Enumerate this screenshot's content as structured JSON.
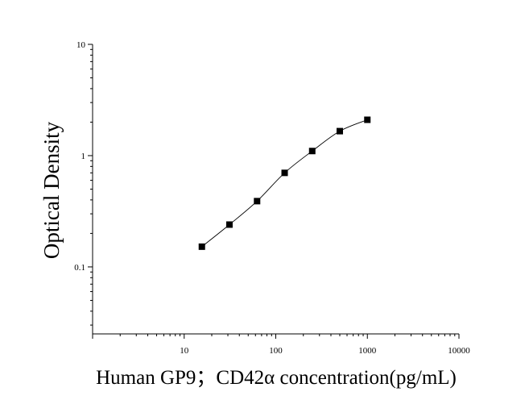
{
  "chart_data": {
    "type": "scatter",
    "title": "",
    "xlabel": "Human GP9；CD42α concentration(pg/mL)",
    "ylabel": "Optical Density",
    "x_scale": "log",
    "y_scale": "log",
    "xlim": [
      1,
      10000
    ],
    "ylim": [
      0.025,
      10
    ],
    "x_ticks": [
      "10",
      "100",
      "1000",
      "10000"
    ],
    "y_ticks": [
      "0.1",
      "1",
      "10"
    ],
    "grid": false,
    "legend": "none",
    "series": [
      {
        "x": [
          15.6,
          31.2,
          62.5,
          125,
          250,
          500,
          1000
        ],
        "y": [
          0.152,
          0.24,
          0.39,
          0.7,
          1.1,
          1.66,
          2.1
        ]
      }
    ],
    "fit_curve": true,
    "marker": "square",
    "color": "#000000"
  }
}
